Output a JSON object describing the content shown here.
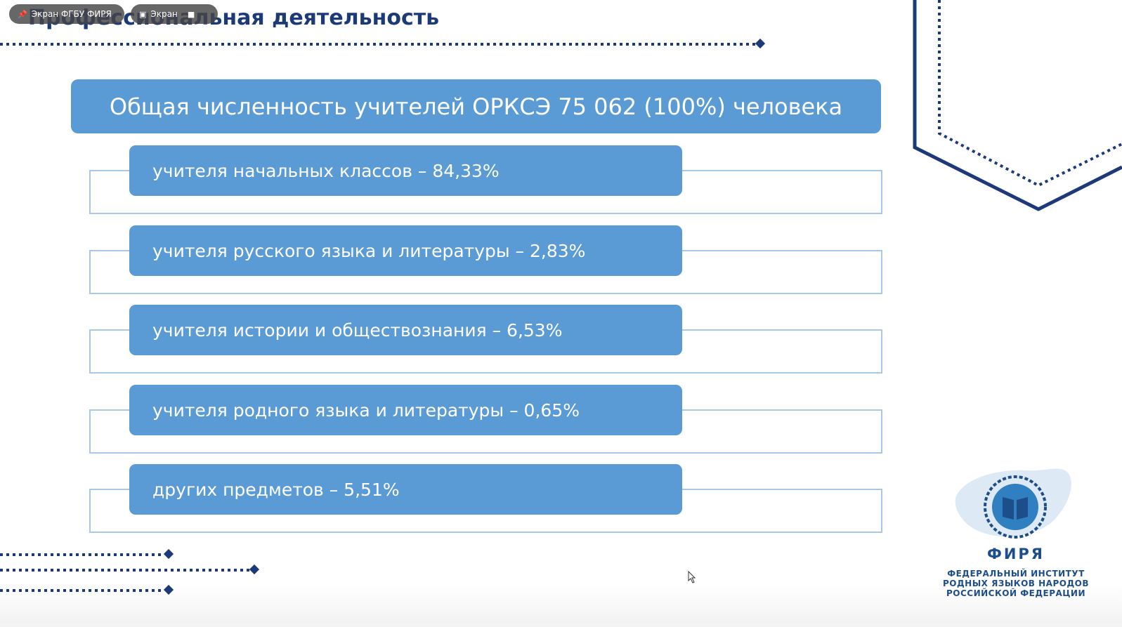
{
  "meeting_bar": {
    "chip1_label": "Экран ФГБУ ФИРЯ",
    "chip1_icon": "pin-icon",
    "chip2_label": "Экран",
    "chip2_icon": "screen-icon",
    "camera_icon": "camera-icon"
  },
  "slide": {
    "title": "Профессиональная деятельность",
    "header": "Общая численность учителей ОРКСЭ 75 062 (100%) человека",
    "items": [
      {
        "label": "учителя начальных классов – 84,33%"
      },
      {
        "label": "учителя русского языка и литературы – 2,83%"
      },
      {
        "label": "учителя истории и обществознания – 6,53%"
      },
      {
        "label": "учителя родного языка и литературы – 0,65%"
      },
      {
        "label": "других предметов – 5,51%"
      }
    ]
  },
  "logo": {
    "name": "ФИРЯ",
    "subtitle_lines": [
      "ФЕДЕРАЛЬНЫЙ ИНСТИТУТ",
      "РОДНЫХ ЯЗЫКОВ НАРОДОВ",
      "РОССИЙСКОЙ ФЕДЕРАЦИИ"
    ]
  },
  "colors": {
    "accent_blue": "#5b9bd5",
    "navy": "#1d3a78",
    "frame_blue": "#a9c7e6"
  }
}
